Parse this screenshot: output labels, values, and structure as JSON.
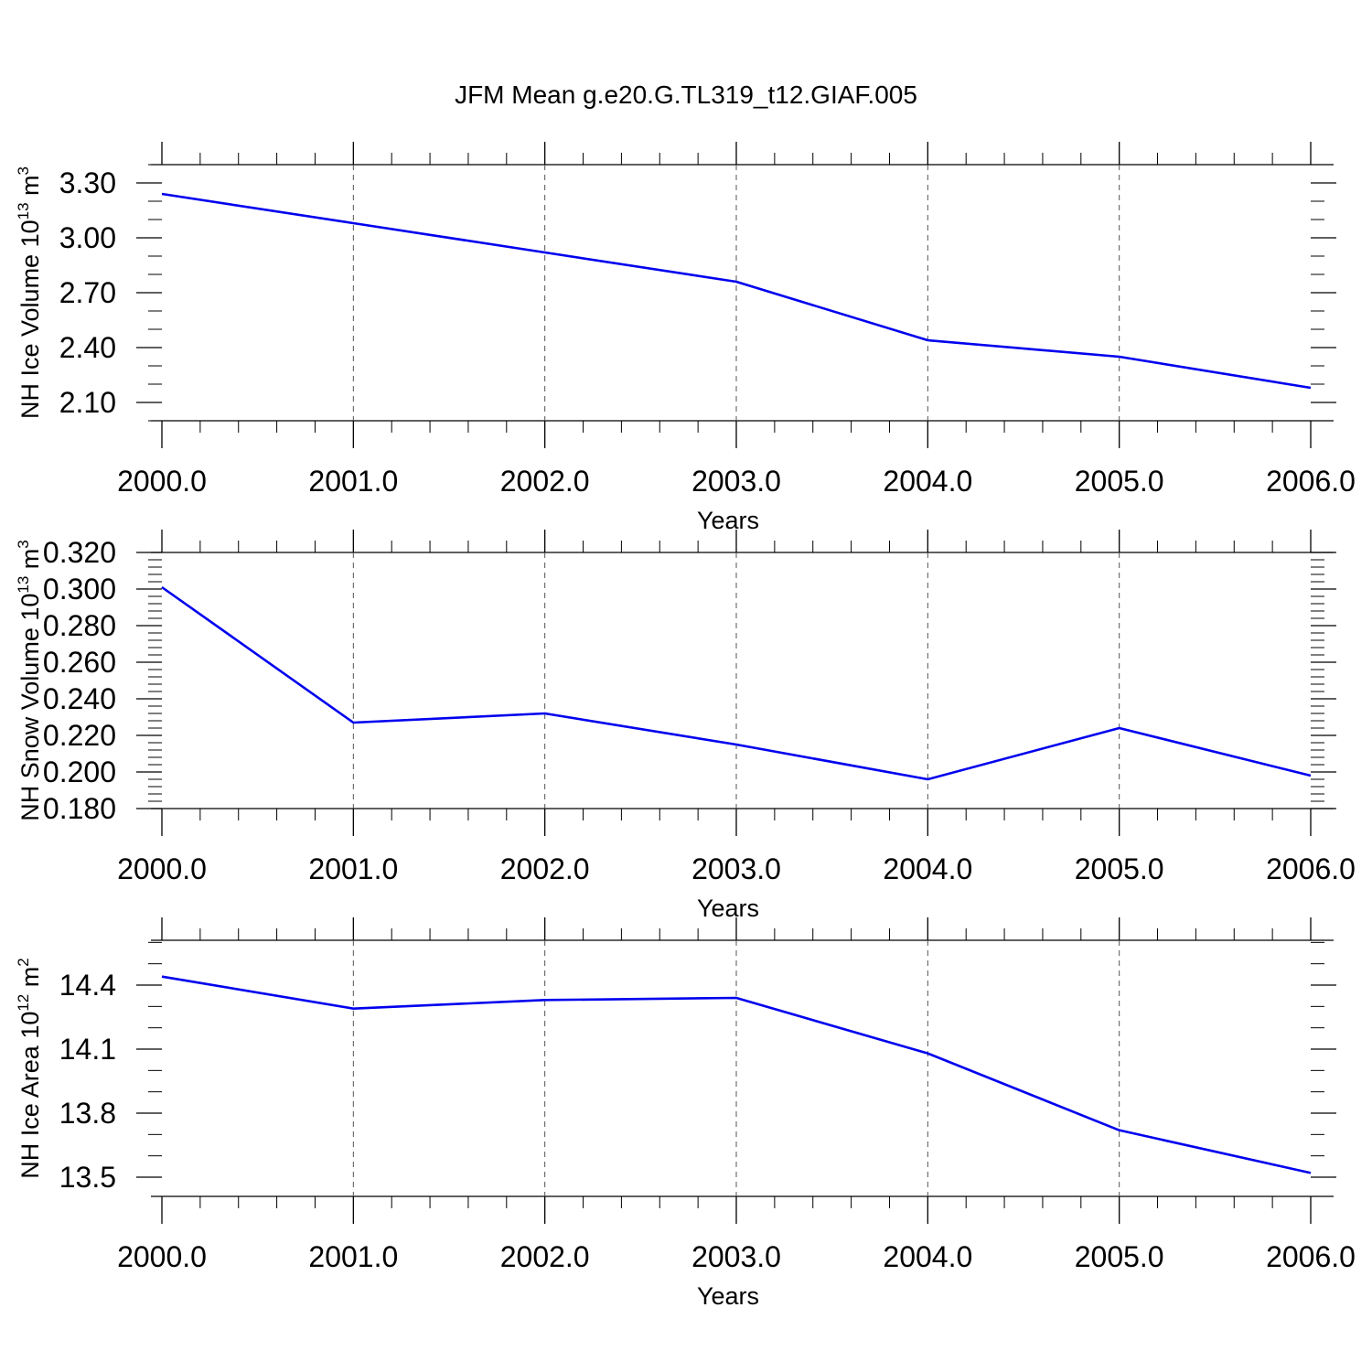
{
  "title": "JFM Mean g.e20.G.TL319_t12.GIAF.005",
  "colors": {
    "line": "#0000ee",
    "frame": "#000000",
    "grid": "#555555"
  },
  "chart_data": [
    {
      "type": "line",
      "title": "JFM Mean g.e20.G.TL319_t12.GIAF.005",
      "xlabel": "Years",
      "ylabel": {
        "main": "NH Ice Volume 10",
        "sup": "13",
        "unit": " m",
        "unitsup": "3"
      },
      "xlim": [
        2000,
        2006
      ],
      "ylim": [
        2.0,
        3.4
      ],
      "grid": "vertical dashed at major x ticks",
      "x_ticks": [
        "2000.0",
        "2001.0",
        "2002.0",
        "2003.0",
        "2004.0",
        "2005.0",
        "2006.0"
      ],
      "y_ticks": [
        {
          "value": 2.1,
          "label": "2.10"
        },
        {
          "value": 2.4,
          "label": "2.40"
        },
        {
          "value": 2.7,
          "label": "2.70"
        },
        {
          "value": 3.0,
          "label": "3.00"
        },
        {
          "value": 3.3,
          "label": "3.30"
        }
      ],
      "y_minor_step": 0.1,
      "x": [
        2000,
        2001,
        2002,
        2003,
        2004,
        2005,
        2006
      ],
      "series": [
        {
          "values": [
            3.24,
            3.08,
            2.92,
            2.76,
            2.44,
            2.35,
            2.18
          ]
        }
      ]
    },
    {
      "type": "line",
      "xlabel": "Years",
      "ylabel": {
        "main": "NH Snow Volume 10",
        "sup": "13",
        "unit": " m",
        "unitsup": "3"
      },
      "xlim": [
        2000,
        2006
      ],
      "ylim": [
        0.18,
        0.32
      ],
      "grid": "vertical dashed at major x ticks",
      "x_ticks": [
        "2000.0",
        "2001.0",
        "2002.0",
        "2003.0",
        "2004.0",
        "2005.0",
        "2006.0"
      ],
      "y_ticks": [
        {
          "value": 0.18,
          "label": "0.180"
        },
        {
          "value": 0.2,
          "label": "0.200"
        },
        {
          "value": 0.22,
          "label": "0.220"
        },
        {
          "value": 0.24,
          "label": "0.240"
        },
        {
          "value": 0.26,
          "label": "0.260"
        },
        {
          "value": 0.28,
          "label": "0.280"
        },
        {
          "value": 0.3,
          "label": "0.300"
        },
        {
          "value": 0.32,
          "label": "0.320"
        }
      ],
      "y_minor_step": 0.004,
      "x": [
        2000,
        2001,
        2002,
        2003,
        2004,
        2005,
        2006
      ],
      "series": [
        {
          "values": [
            0.301,
            0.227,
            0.232,
            0.215,
            0.196,
            0.224,
            0.198
          ]
        }
      ]
    },
    {
      "type": "line",
      "xlabel": "Years",
      "ylabel": {
        "main": "NH Ice Area 10",
        "sup": "12",
        "unit": " m",
        "unitsup": "2"
      },
      "xlim": [
        2000,
        2006
      ],
      "ylim": [
        13.41,
        14.61
      ],
      "grid": "vertical dashed at major x ticks",
      "x_ticks": [
        "2000.0",
        "2001.0",
        "2002.0",
        "2003.0",
        "2004.0",
        "2005.0",
        "2006.0"
      ],
      "y_ticks": [
        {
          "value": 13.5,
          "label": "13.5"
        },
        {
          "value": 13.8,
          "label": "13.8"
        },
        {
          "value": 14.1,
          "label": "14.1"
        },
        {
          "value": 14.4,
          "label": "14.4"
        }
      ],
      "y_minor_step": 0.1,
      "x": [
        2000,
        2001,
        2002,
        2003,
        2004,
        2005,
        2006
      ],
      "series": [
        {
          "values": [
            14.44,
            14.29,
            14.33,
            14.34,
            14.08,
            13.72,
            13.52
          ]
        }
      ]
    }
  ]
}
